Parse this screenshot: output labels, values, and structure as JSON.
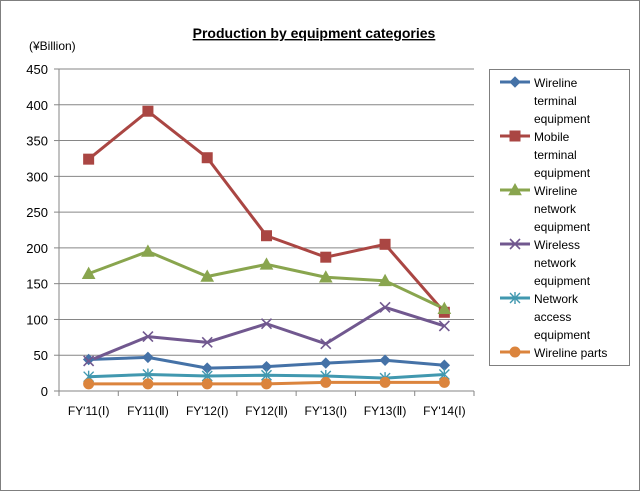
{
  "chart_data": {
    "type": "line",
    "title": "Production by equipment categories",
    "ylabel": "(¥Billion)",
    "xlabel": "",
    "categories": [
      "FY'11(Ⅰ)",
      "FY11(Ⅱ)",
      "FY'12(Ⅰ)",
      "FY12(Ⅱ)",
      "FY'13(Ⅰ)",
      "FY13(Ⅱ)",
      "FY'14(Ⅰ)"
    ],
    "ylim": [
      0,
      450
    ],
    "yticks": [
      0,
      50,
      100,
      150,
      200,
      250,
      300,
      350,
      400,
      450
    ],
    "grid": true,
    "legend_position": "right",
    "series": [
      {
        "name": "Wireline terminal equipment",
        "color": "#4572a7",
        "marker": "diamond",
        "values": [
          44,
          47,
          32,
          34,
          39,
          43,
          36
        ]
      },
      {
        "name": "Mobile terminal equipment",
        "color": "#aa4643",
        "marker": "square",
        "values": [
          324,
          391,
          326,
          217,
          187,
          205,
          110
        ]
      },
      {
        "name": "Wireline network equipment",
        "color": "#89a54e",
        "marker": "triangle",
        "values": [
          164,
          195,
          160,
          177,
          159,
          154,
          115
        ]
      },
      {
        "name": "Wireless network equipment",
        "color": "#71588f",
        "marker": "x",
        "values": [
          42,
          76,
          68,
          94,
          66,
          117,
          91
        ]
      },
      {
        "name": "Network access equipment",
        "color": "#4198af",
        "marker": "star",
        "values": [
          20,
          23,
          21,
          22,
          21,
          18,
          23
        ]
      },
      {
        "name": "Wireline parts",
        "color": "#db843d",
        "marker": "circle",
        "values": [
          10,
          10,
          10,
          10,
          12,
          12,
          12
        ]
      }
    ]
  },
  "legend_labels": [
    [
      "Wireline",
      "terminal",
      "equipment"
    ],
    [
      "Mobile",
      "terminal",
      "equipment"
    ],
    [
      "Wireline",
      "network",
      "equipment"
    ],
    [
      "Wireless",
      "network",
      "equipment"
    ],
    [
      "Network",
      "access",
      "equipment"
    ],
    [
      "Wireline parts"
    ]
  ]
}
